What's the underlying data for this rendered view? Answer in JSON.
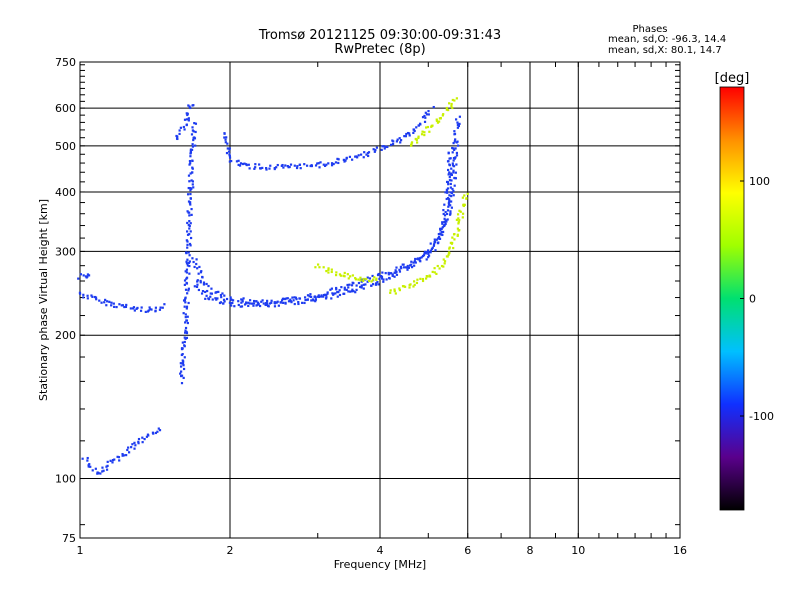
{
  "chart_data": {
    "type": "scatter",
    "title": "Tromsø 20121125 09:30:00-09:31:43",
    "subtitle": "RwPretec (8p)",
    "xlabel": "Frequency [MHz]",
    "ylabel": "Stationary phase Virtual Height [km]",
    "x_scale": "log",
    "y_scale": "log",
    "xlim": [
      1,
      16
    ],
    "ylim": [
      75,
      750
    ],
    "grid": true,
    "x_ticks": [
      1,
      2,
      4,
      6,
      8,
      10,
      16
    ],
    "y_ticks": [
      75,
      100,
      200,
      300,
      400,
      500,
      600,
      750
    ],
    "stats": {
      "heading": "Phases",
      "line_o": "mean, sd,O:  -96.3, 14.4",
      "line_x": "mean, sd,X:  80.1, 14.7"
    },
    "colorbar": {
      "label": "[deg]",
      "range": [
        -180,
        180
      ],
      "ticks": [
        100,
        0,
        -100
      ],
      "colors": [
        "#000000",
        "#5a008c",
        "#1030ff",
        "#00c0ff",
        "#00e070",
        "#a0ff00",
        "#ffff00",
        "#ff9000",
        "#ff0000"
      ]
    },
    "series": [
      {
        "phase": -96.3,
        "color": "#1e3cf0",
        "traces": [
          [
            [
              1.0,
              245
            ],
            [
              1.05,
              240
            ],
            [
              1.12,
              235
            ],
            [
              1.2,
              231
            ],
            [
              1.3,
              227
            ],
            [
              1.4,
              226
            ],
            [
              1.46,
              229
            ],
            [
              1.48,
              234
            ]
          ],
          [
            [
              1.0,
              265
            ],
            [
              1.03,
              268
            ],
            [
              1.06,
              263
            ]
          ],
          [
            [
              1.6,
              160
            ],
            [
              1.62,
              190
            ],
            [
              1.63,
              220
            ],
            [
              1.64,
              260
            ],
            [
              1.65,
              310
            ],
            [
              1.66,
              360
            ],
            [
              1.67,
              420
            ],
            [
              1.68,
              470
            ],
            [
              1.69,
              520
            ],
            [
              1.7,
              560
            ]
          ],
          [
            [
              1.7,
              290
            ],
            [
              1.75,
              262
            ],
            [
              1.85,
              246
            ],
            [
              2.0,
              238
            ],
            [
              2.3,
              234
            ],
            [
              2.7,
              238
            ],
            [
              3.0,
              243
            ],
            [
              3.4,
              252
            ],
            [
              3.8,
              262
            ],
            [
              4.2,
              272
            ],
            [
              4.6,
              283
            ],
            [
              5.0,
              300
            ],
            [
              5.3,
              325
            ],
            [
              5.5,
              360
            ],
            [
              5.6,
              410
            ],
            [
              5.65,
              470
            ],
            [
              5.7,
              530
            ],
            [
              5.72,
              580
            ]
          ],
          [
            [
              1.7,
              260
            ],
            [
              1.8,
              240
            ],
            [
              2.0,
              232
            ],
            [
              2.5,
              232
            ],
            [
              3.0,
              238
            ],
            [
              3.6,
              250
            ],
            [
              4.2,
              265
            ],
            [
              4.8,
              285
            ],
            [
              5.2,
              310
            ],
            [
              5.4,
              350
            ],
            [
              5.5,
              420
            ],
            [
              5.55,
              500
            ]
          ],
          [
            [
              1.95,
              530
            ],
            [
              2.0,
              470
            ],
            [
              2.1,
              455
            ],
            [
              2.4,
              450
            ],
            [
              2.8,
              452
            ],
            [
              3.2,
              460
            ],
            [
              3.6,
              475
            ],
            [
              4.0,
              492
            ],
            [
              4.4,
              515
            ],
            [
              4.8,
              555
            ],
            [
              5.1,
              600
            ]
          ],
          [
            [
              1.55,
              520
            ],
            [
              1.6,
              540
            ],
            [
              1.64,
              560
            ],
            [
              1.66,
              600
            ],
            [
              1.68,
              620
            ]
          ],
          [
            [
              1.02,
              110
            ],
            [
              1.06,
              105
            ],
            [
              1.1,
              102
            ],
            [
              1.15,
              108
            ],
            [
              1.22,
              112
            ],
            [
              1.3,
              118
            ],
            [
              1.38,
              124
            ],
            [
              1.45,
              128
            ]
          ]
        ]
      },
      {
        "phase": 80.1,
        "color": "#c8f000",
        "traces": [
          [
            [
              4.6,
              500
            ],
            [
              4.8,
              520
            ],
            [
              5.0,
              540
            ],
            [
              5.2,
              560
            ],
            [
              5.4,
              585
            ],
            [
              5.55,
              610
            ],
            [
              5.7,
              630
            ]
          ],
          [
            [
              4.2,
              245
            ],
            [
              4.6,
              255
            ],
            [
              5.0,
              265
            ],
            [
              5.3,
              280
            ],
            [
              5.5,
              300
            ],
            [
              5.7,
              330
            ],
            [
              5.85,
              370
            ],
            [
              5.95,
              400
            ]
          ],
          [
            [
              3.0,
              280
            ],
            [
              3.2,
              272
            ],
            [
              3.5,
              265
            ],
            [
              3.8,
              262
            ],
            [
              4.0,
              265
            ]
          ]
        ]
      }
    ]
  }
}
